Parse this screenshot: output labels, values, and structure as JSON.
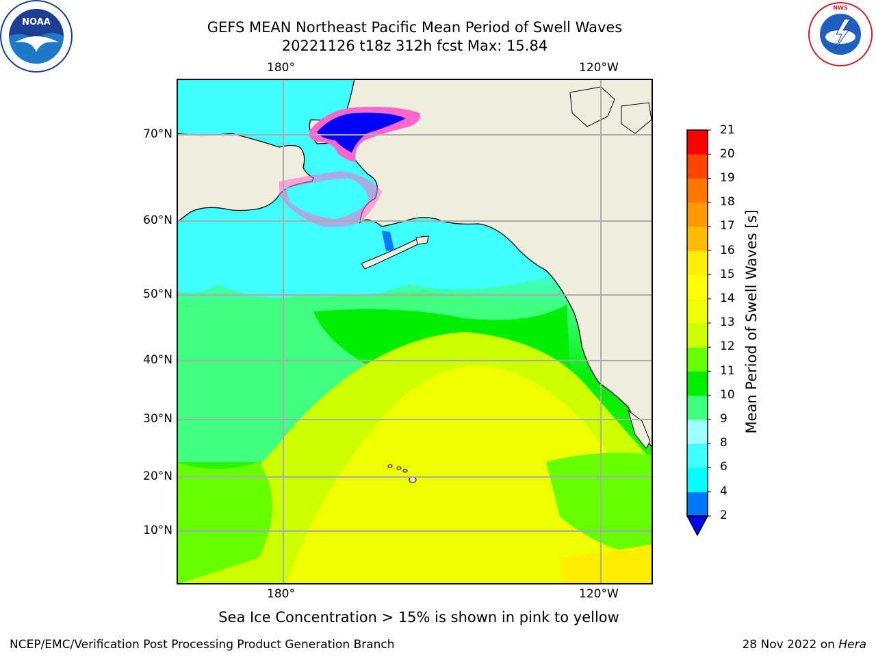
{
  "title_line1": "GEFS MEAN Northeast Pacific Mean Period of Swell Waves",
  "title_line2": "20221126 t18z 312h fcst   Max: 15.84",
  "logos": {
    "left": "noaa-logo",
    "left_text": "NOAA",
    "right": "national-weather-service-logo",
    "right_text": "NATIONAL WEATHER SERVICE"
  },
  "chart_data": {
    "type": "heatmap",
    "title": "GEFS MEAN Northeast Pacific Mean Period of Swell Waves",
    "subtitle": "20221126 t18z 312h fcst   Max: 15.84",
    "max": 15.84,
    "lon_ticks_top": [
      "180°",
      "120°W"
    ],
    "lon_ticks_bottom": [
      "180°",
      "120°W"
    ],
    "lat_ticks": [
      "70°N",
      "60°N",
      "50°N",
      "40°N",
      "30°N",
      "20°N",
      "10°N"
    ],
    "grid": true,
    "colorbar": {
      "label": "Mean Period of Swell Waves [s]",
      "ticks": [
        "21",
        "20",
        "19",
        "18",
        "17",
        "16",
        "15",
        "14",
        "13",
        "12",
        "11",
        "10",
        "9",
        "8",
        "6",
        "4",
        "2"
      ],
      "levels": [
        2,
        4,
        6,
        8,
        9,
        10,
        11,
        12,
        13,
        14,
        15,
        16,
        17,
        18,
        19,
        20,
        21
      ],
      "colors": [
        "#0077ff",
        "#00ffff",
        "#40ffff",
        "#a0ffff",
        "#40ff80",
        "#00ee00",
        "#66ff00",
        "#ccff00",
        "#eeff00",
        "#ffff00",
        "#ffee00",
        "#ffbb00",
        "#ff9900",
        "#ff7700",
        "#ff4400",
        "#ff0000"
      ],
      "extend_min_color": "#0000ff"
    },
    "regions_description_colors": {
      "land": "#efedde",
      "ice_open": "#0000ff"
    }
  },
  "ice_note": "Sea Ice Concentration > 15% is shown in pink to yellow",
  "footer_left": "NCEP/EMC/Verification Post Processing Product Generation Branch",
  "footer_right_date": "28 Nov 2022 on ",
  "footer_right_host": "Hera"
}
